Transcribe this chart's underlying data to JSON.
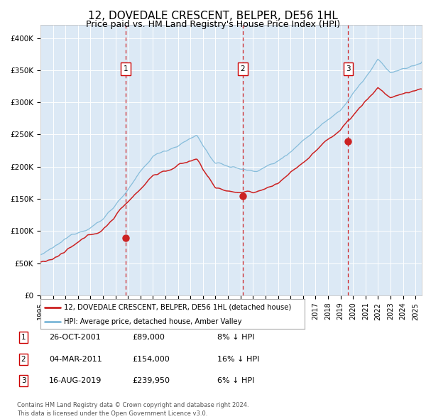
{
  "title": "12, DOVEDALE CRESCENT, BELPER, DE56 1HL",
  "subtitle": "Price paid vs. HM Land Registry's House Price Index (HPI)",
  "title_fontsize": 11,
  "subtitle_fontsize": 9,
  "xlim_start": 1995.0,
  "xlim_end": 2025.5,
  "ylim_min": 0,
  "ylim_max": 420000,
  "yticks": [
    0,
    50000,
    100000,
    150000,
    200000,
    250000,
    300000,
    350000,
    400000
  ],
  "ytick_labels": [
    "£0",
    "£50K",
    "£100K",
    "£150K",
    "£200K",
    "£250K",
    "£300K",
    "£350K",
    "£400K"
  ],
  "xticks": [
    1995,
    1996,
    1997,
    1998,
    1999,
    2000,
    2001,
    2002,
    2003,
    2004,
    2005,
    2006,
    2007,
    2008,
    2009,
    2010,
    2011,
    2012,
    2013,
    2014,
    2015,
    2016,
    2017,
    2018,
    2019,
    2020,
    2021,
    2022,
    2023,
    2024,
    2025
  ],
  "background_color": "#dce9f5",
  "grid_color": "#ffffff",
  "hpi_line_color": "#7db8d8",
  "price_line_color": "#cc2222",
  "vline_color": "#cc0000",
  "sale1_date": 2001.82,
  "sale1_price": 89000,
  "sale1_label": "1",
  "sale2_date": 2011.17,
  "sale2_price": 154000,
  "sale2_label": "2",
  "sale3_date": 2019.62,
  "sale3_price": 239950,
  "sale3_label": "3",
  "legend_price_label": "12, DOVEDALE CRESCENT, BELPER, DE56 1HL (detached house)",
  "legend_hpi_label": "HPI: Average price, detached house, Amber Valley",
  "table_rows": [
    [
      "1",
      "26-OCT-2001",
      "£89,000",
      "8% ↓ HPI"
    ],
    [
      "2",
      "04-MAR-2011",
      "£154,000",
      "16% ↓ HPI"
    ],
    [
      "3",
      "16-AUG-2019",
      "£239,950",
      "6% ↓ HPI"
    ]
  ],
  "footer_text": "Contains HM Land Registry data © Crown copyright and database right 2024.\nThis data is licensed under the Open Government Licence v3.0.",
  "fig_width": 6.0,
  "fig_height": 5.9
}
